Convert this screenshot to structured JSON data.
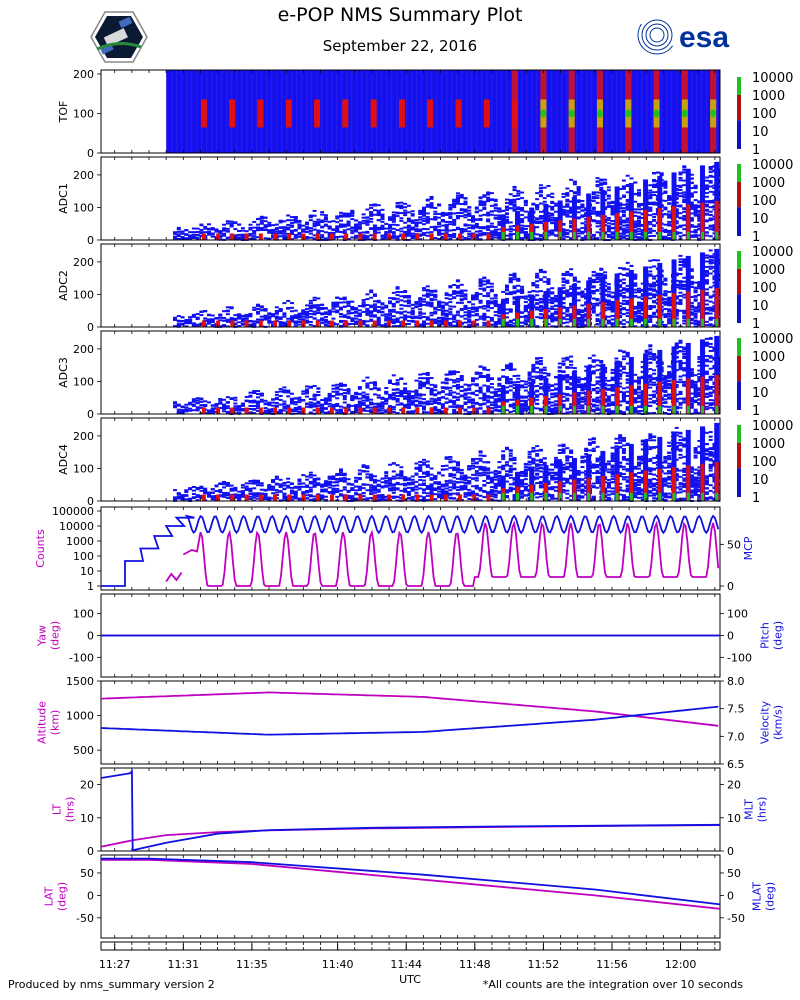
{
  "header": {
    "title": "e-POP NMS Summary Plot",
    "date": "September 22, 2016",
    "left_logo": "epop-satellite-logo",
    "right_logo_text": "esa"
  },
  "footer": {
    "left": "Produced by nms_summary version 2",
    "right": "*All counts are the integration over 10 seconds",
    "xlabel": "UTC"
  },
  "colors": {
    "magenta": "#c000c0",
    "blue": "#1010e0",
    "spectro_bg": "#1010f0",
    "hot": "#e01010",
    "green": "#20c020",
    "esa_blue": "#003399"
  },
  "chart_data": {
    "type": "multi-panel time series",
    "x_ticks": [
      "11:27",
      "11:31",
      "11:35",
      "11:40",
      "11:44",
      "11:48",
      "11:52",
      "11:56",
      "12:00"
    ],
    "x_range_minutes": [
      26.2,
      62.3
    ],
    "colorbar_ticks": [
      "10000",
      "1000",
      "100",
      "10",
      "1"
    ],
    "spectrograms": [
      {
        "name": "TOF",
        "ylabel": "TOF",
        "ylim": [
          0,
          210
        ],
        "yticks": [
          0,
          100,
          200
        ],
        "start_min": 30.0
      },
      {
        "name": "ADC1",
        "ylabel": "ADC1",
        "ylim": [
          0,
          255
        ],
        "yticks": [
          0,
          100,
          200
        ],
        "start_min": 30.0
      },
      {
        "name": "ADC2",
        "ylabel": "ADC2",
        "ylim": [
          0,
          255
        ],
        "yticks": [
          0,
          100,
          200
        ],
        "start_min": 30.0
      },
      {
        "name": "ADC3",
        "ylabel": "ADC3",
        "ylim": [
          0,
          255
        ],
        "yticks": [
          0,
          100,
          200
        ],
        "start_min": 30.0
      },
      {
        "name": "ADC4",
        "ylabel": "ADC4",
        "ylim": [
          0,
          255
        ],
        "yticks": [
          0,
          100,
          200
        ],
        "start_min": 30.0
      }
    ],
    "counts_panel": {
      "left_label": "Counts",
      "right_label": "MCP",
      "left_ticks": [
        "100000",
        "10000",
        "1000",
        "100",
        "10",
        "1"
      ],
      "right_ticks": [
        "50",
        "0"
      ],
      "counts_start_min": 30.0,
      "counts_range_log": [
        0,
        5
      ],
      "mcp_range": [
        0,
        90
      ]
    },
    "attitude_panel": {
      "left_label": [
        "Yaw",
        "(deg)"
      ],
      "right_label": [
        "Pitch",
        "(deg)"
      ],
      "ylim": [
        -190,
        190
      ],
      "left_ticks": [
        100,
        0,
        -100
      ],
      "right_ticks": [
        100,
        0,
        -100
      ],
      "yaw_value": 0,
      "pitch_value": 0
    },
    "orbit_panel": {
      "left_label": [
        "Altitude",
        "(km)"
      ],
      "right_label": [
        "Velocity",
        "(km/s)"
      ],
      "left_ylim": [
        300,
        1500
      ],
      "left_ticks": [
        1500,
        1000,
        500
      ],
      "right_ylim": [
        6.5,
        8.0
      ],
      "right_ticks": [
        "8.0",
        "7.5",
        "7.0",
        "6.5"
      ],
      "altitude": {
        "x": [
          26.2,
          36.0,
          45.0,
          55.0,
          62.3
        ],
        "y": [
          1245,
          1335,
          1270,
          1060,
          850
        ]
      },
      "velocity": {
        "x": [
          26.2,
          36.0,
          45.0,
          55.0,
          62.3
        ],
        "y": [
          7.15,
          7.03,
          7.08,
          7.3,
          7.54
        ]
      }
    },
    "time_panel": {
      "left_label": [
        "LT",
        "(hrs)"
      ],
      "right_label": [
        "MLT",
        "(hrs)"
      ],
      "ylim": [
        0,
        25
      ],
      "left_ticks": [
        20,
        10,
        0
      ],
      "right_ticks": [
        20,
        10,
        0
      ],
      "lt": {
        "x": [
          26.2,
          28,
          30,
          33,
          36,
          42,
          50,
          62.3
        ],
        "y": [
          1.3,
          3.2,
          4.8,
          5.7,
          6.2,
          6.8,
          7.3,
          7.8
        ]
      },
      "mlt": {
        "x": [
          26.2,
          27.9,
          28.0,
          28.05,
          30,
          33,
          36,
          42,
          50,
          62.3
        ],
        "y": [
          22.0,
          23.4,
          24.0,
          0.2,
          2.5,
          5.2,
          6.3,
          7.0,
          7.4,
          7.9
        ]
      }
    },
    "lat_panel": {
      "left_label": [
        "LAT",
        "(deg)"
      ],
      "right_label": [
        "MLAT",
        "(deg)"
      ],
      "ylim": [
        -95,
        90
      ],
      "left_ticks": [
        50,
        0,
        -50
      ],
      "right_ticks": [
        50,
        0,
        -50
      ],
      "lat": {
        "x": [
          26.2,
          29,
          35,
          45,
          55,
          62.3
        ],
        "y": [
          79,
          79,
          70,
          35,
          0,
          -30
        ]
      },
      "mlat": {
        "x": [
          26.2,
          29,
          35,
          45,
          55,
          62.3
        ],
        "y": [
          82,
          82,
          74,
          46,
          13,
          -20
        ]
      }
    }
  }
}
